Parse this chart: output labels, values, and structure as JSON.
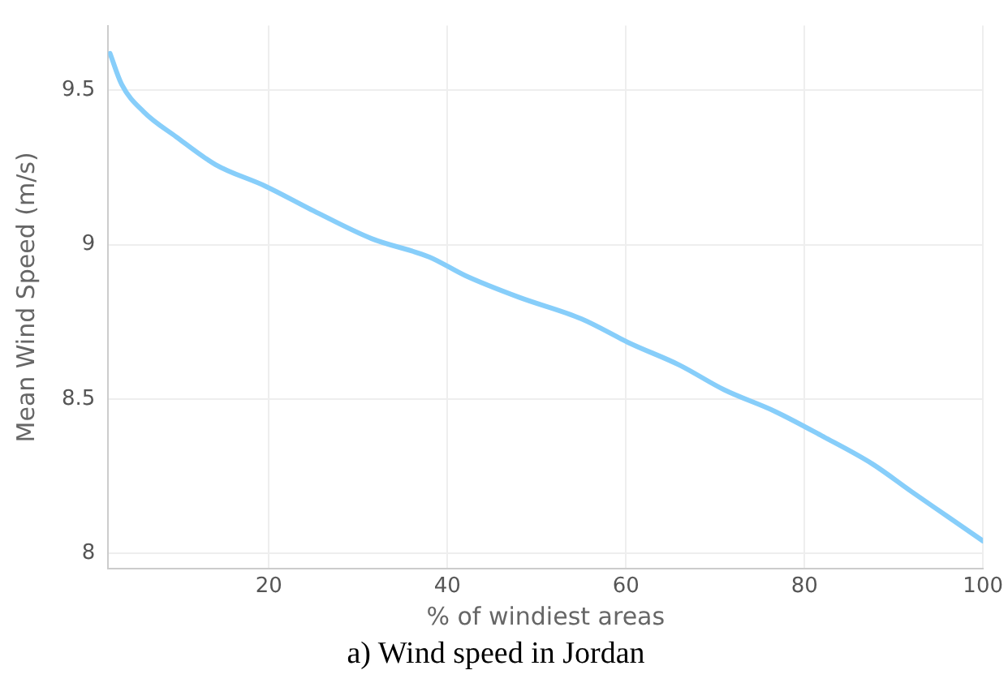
{
  "chart_data": {
    "type": "line",
    "title": "a) Wind speed in Jordan",
    "xlabel": "% of windiest areas",
    "ylabel": "Mean Wind Speed (m/s)",
    "x": [
      2.2,
      3.5,
      6,
      9.6,
      14,
      19.6,
      25,
      31.5,
      38,
      42,
      48,
      55,
      60.5,
      66,
      71,
      76.7,
      82,
      87.6,
      92,
      96,
      100
    ],
    "series": [
      {
        "color": "#87cefa",
        "values": [
          9.62,
          9.52,
          9.43,
          9.35,
          9.26,
          9.19,
          9.11,
          9.02,
          8.96,
          8.9,
          8.83,
          8.76,
          8.68,
          8.61,
          8.53,
          8.46,
          8.38,
          8.29,
          8.2,
          8.12,
          8.04
        ]
      }
    ],
    "xlim": [
      2,
      100
    ],
    "xticks": [
      20,
      40,
      60,
      80,
      100
    ],
    "ylim": [
      7.95,
      9.71
    ],
    "yticks": [
      8,
      8.5,
      9,
      9.5
    ],
    "grid": true,
    "legend": false,
    "marker": "none",
    "line_style": "solid"
  }
}
